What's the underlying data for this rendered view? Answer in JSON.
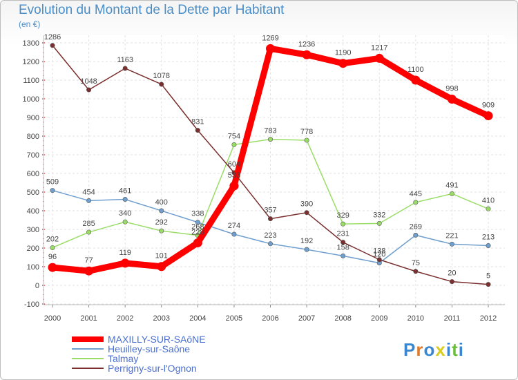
{
  "title": "Evolution du Montant de la Dette par Habitant",
  "unit": "(en €)",
  "brand": {
    "letters": [
      "P",
      "r",
      "o",
      "x",
      "i",
      "t",
      "i"
    ],
    "colors": [
      "#3a86d0",
      "#e07b2a",
      "#3a86d0",
      "#d9cc1f",
      "#3a86d0",
      "#6bbf3a",
      "#3a86d0"
    ]
  },
  "chart_data": {
    "type": "line",
    "title": "Evolution du Montant de la Dette par Habitant",
    "ylabel": "(en €)",
    "xlabel": "",
    "x": [
      "2000",
      "2001",
      "2002",
      "2003",
      "2004",
      "2005",
      "2006",
      "2007",
      "2008",
      "2009",
      "2010",
      "2011",
      "2012"
    ],
    "ylim": [
      -100,
      1300
    ],
    "yticks": [
      "-100",
      "0",
      "100",
      "200",
      "300",
      "400",
      "500",
      "600",
      "700",
      "800",
      "900",
      "1000",
      "1100",
      "1200",
      "1300"
    ],
    "grid": true,
    "legend": "bottom-left",
    "series": [
      {
        "name": "MAXILLY-SUR-SAôNE",
        "color": "#ff0000",
        "values": [
          96,
          77,
          119,
          101,
          228,
          533,
          1269,
          1236,
          1190,
          1217,
          1100,
          998,
          909
        ],
        "labels": [
          "96",
          "77",
          "119",
          "101",
          "228",
          "533",
          "1269",
          "1236",
          "1190",
          "1217",
          "1100",
          "998",
          "909"
        ]
      },
      {
        "name": "Heuilley-sur-Saône",
        "color": "#6f9fcf",
        "values": [
          509,
          454,
          461,
          400,
          338,
          274,
          223,
          192,
          158,
          120,
          269,
          221,
          213
        ],
        "labels": [
          "509",
          "454",
          "461",
          "400",
          "338",
          "274",
          "223",
          "192",
          "158",
          "120",
          "269",
          "221",
          "213"
        ]
      },
      {
        "name": "Talmay",
        "color": "#99dd66",
        "values": [
          202,
          285,
          340,
          292,
          268,
          754,
          783,
          778,
          329,
          332,
          445,
          491,
          410
        ],
        "labels": [
          "202",
          "285",
          "340",
          "292",
          "268",
          "754",
          "783",
          "778",
          "329",
          "332",
          "445",
          "491",
          "410"
        ]
      },
      {
        "name": "Perrigny-sur-l'Ognon",
        "color": "#7a2e2e",
        "values": [
          1286,
          1048,
          1163,
          1078,
          831,
          604,
          357,
          390,
          231,
          138,
          75,
          20,
          5
        ],
        "labels": [
          "1286",
          "1048",
          "1163",
          "1078",
          "831",
          "604",
          "357",
          "390",
          "231",
          "138",
          "75",
          "20",
          "5"
        ]
      }
    ]
  }
}
